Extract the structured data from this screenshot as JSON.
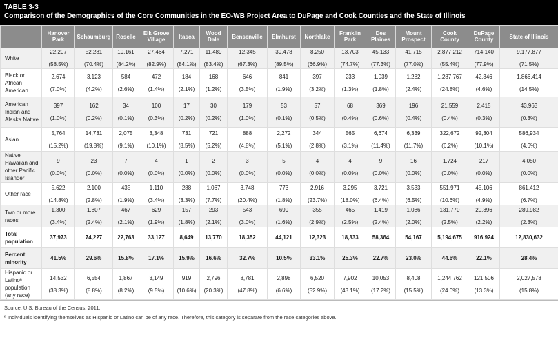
{
  "title": {
    "line1": "TABLE 3-3",
    "line2": "Comparison of the Demographics of the Core Communities in the EO-WB Project Area to DuPage and Cook Counties and the State of Illinois"
  },
  "columns": [
    "",
    "Hanover Park",
    "Schaumburg",
    "Roselle",
    "Elk Grove Village",
    "Itasca",
    "Wood Dale",
    "Bensenville",
    "Elmhurst",
    "Northlake",
    "Franklin Park",
    "Des Plaines",
    "Mount Prospect",
    "Cook County",
    "DuPage County",
    "State of Illinois"
  ],
  "rows": [
    {
      "label": "White",
      "values": [
        "22,207",
        "52,281",
        "19,161",
        "27,464",
        "7,271",
        "11,489",
        "12,345",
        "39,478",
        "8,250",
        "13,703",
        "45,133",
        "41,715",
        "2,877,212",
        "714,140",
        "9,177,877"
      ],
      "pcts": [
        "(58.5%)",
        "(70.4%)",
        "(84.2%)",
        "(82.9%)",
        "(84.1%)",
        "(83.4%)",
        "(67.3%)",
        "(89.5%)",
        "(66.9%)",
        "(74.7%)",
        "(77.3%)",
        "(77.0%)",
        "(55.4%)",
        "(77.9%)",
        "(71.5%)"
      ]
    },
    {
      "label": "Black or African American",
      "values": [
        "2,674",
        "3,123",
        "584",
        "472",
        "184",
        "168",
        "646",
        "841",
        "397",
        "233",
        "1,039",
        "1,282",
        "1,287,767",
        "42,346",
        "1,866,414"
      ],
      "pcts": [
        "(7.0%)",
        "(4.2%)",
        "(2.6%)",
        "(1.4%)",
        "(2.1%)",
        "(1.2%)",
        "(3.5%)",
        "(1.9%)",
        "(3.2%)",
        "(1.3%)",
        "(1.8%)",
        "(2.4%)",
        "(24.8%)",
        "(4.6%)",
        "(14.5%)"
      ]
    },
    {
      "label": "American Indian and Alaska Native",
      "values": [
        "397",
        "162",
        "34",
        "100",
        "17",
        "30",
        "179",
        "53",
        "57",
        "68",
        "369",
        "196",
        "21,559",
        "2,415",
        "43,963"
      ],
      "pcts": [
        "(1.0%)",
        "(0.2%)",
        "(0.1%)",
        "(0.3%)",
        "(0.2%)",
        "(0.2%)",
        "(1.0%)",
        "(0.1%)",
        "(0.5%)",
        "(0.4%)",
        "(0.6%)",
        "(0.4%)",
        "(0.4%)",
        "(0.3%)",
        "(0.3%)"
      ]
    },
    {
      "label": "Asian",
      "values": [
        "5,764",
        "14,731",
        "2,075",
        "3,348",
        "731",
        "721",
        "888",
        "2,272",
        "344",
        "565",
        "6,674",
        "6,339",
        "322,672",
        "92,304",
        "586,934"
      ],
      "pcts": [
        "(15.2%)",
        "(19.8%)",
        "(9.1%)",
        "(10.1%)",
        "(8.5%)",
        "(5.2%)",
        "(4.8%)",
        "(5.1%)",
        "(2.8%)",
        "(3.1%)",
        "(11.4%)",
        "(11.7%)",
        "(6.2%)",
        "(10.1%)",
        "(4.6%)"
      ]
    },
    {
      "label": "Native Hawaiian and other Pacific Islander",
      "values": [
        "9",
        "23",
        "7",
        "4",
        "1",
        "2",
        "3",
        "5",
        "4",
        "4",
        "9",
        "16",
        "1,724",
        "217",
        "4,050"
      ],
      "pcts": [
        "(0.0%)",
        "(0.0%)",
        "(0.0%)",
        "(0.0%)",
        "(0.0%)",
        "(0.0%)",
        "(0.0%)",
        "(0.0%)",
        "(0.0%)",
        "(0.0%)",
        "(0.0%)",
        "(0.0%)",
        "(0.0%)",
        "(0.0%)",
        "(0.0%)"
      ]
    },
    {
      "label": "Other race",
      "values": [
        "5,622",
        "2,100",
        "435",
        "1,110",
        "288",
        "1,067",
        "3,748",
        "773",
        "2,916",
        "3,295",
        "3,721",
        "3,533",
        "551,971",
        "45,106",
        "861,412"
      ],
      "pcts": [
        "(14.8%)",
        "(2.8%)",
        "(1.9%)",
        "(3.4%)",
        "(3.3%)",
        "(7.7%)",
        "(20.4%)",
        "(1.8%)",
        "(23.7%)",
        "(18.0%)",
        "(6.4%)",
        "(6.5%)",
        "(10.6%)",
        "(4.9%)",
        "(6.7%)"
      ]
    },
    {
      "label": "Two or more races",
      "values": [
        "1,300",
        "1,807",
        "467",
        "629",
        "157",
        "293",
        "543",
        "699",
        "355",
        "465",
        "1,419",
        "1,086",
        "131,770",
        "20,396",
        "289,982"
      ],
      "pcts": [
        "(3.4%)",
        "(2.4%)",
        "(2.1%)",
        "(1.9%)",
        "(1.8%)",
        "(2.1%)",
        "(3.0%)",
        "(1.6%)",
        "(2.9%)",
        "(2.5%)",
        "(2.4%)",
        "(2.0%)",
        "(2.5%)",
        "(2.2%)",
        "(2.3%)"
      ]
    },
    {
      "label": "Total population",
      "bold": true,
      "values": [
        "37,973",
        "74,227",
        "22,763",
        "33,127",
        "8,649",
        "13,770",
        "18,352",
        "44,121",
        "12,323",
        "18,333",
        "58,364",
        "54,167",
        "5,194,675",
        "916,924",
        "12,830,632"
      ]
    },
    {
      "label": "Percent minority",
      "bold": true,
      "values": [
        "41.5%",
        "29.6%",
        "15.8%",
        "17.1%",
        "15.9%",
        "16.6%",
        "32.7%",
        "10.5%",
        "33.1%",
        "25.3%",
        "22.7%",
        "23.0%",
        "44.6%",
        "22.1%",
        "28.4%"
      ]
    },
    {
      "label": "Hispanic or Latinoª population (any race)",
      "values": [
        "14,532",
        "6,554",
        "1,867",
        "3,149",
        "919",
        "2,796",
        "8,781",
        "2,898",
        "6,520",
        "7,902",
        "10,053",
        "8,408",
        "1,244,762",
        "121,506",
        "2,027,578"
      ],
      "pcts": [
        "(38.3%)",
        "(8.8%)",
        "(8.2%)",
        "(9.5%)",
        "(10.6%)",
        "(20.3%)",
        "(47.8%)",
        "(6.6%)",
        "(52.9%)",
        "(43.1%)",
        "(17.2%)",
        "(15.5%)",
        "(24.0%)",
        "(13.3%)",
        "(15.8%)"
      ]
    }
  ],
  "footer": {
    "source": "Source: U.S. Bureau of the Census, 2011.",
    "note": "ª Individuals identifying themselves as Hispanic or Latino can be of any race. Therefore, this category is separate from the race categories above."
  }
}
